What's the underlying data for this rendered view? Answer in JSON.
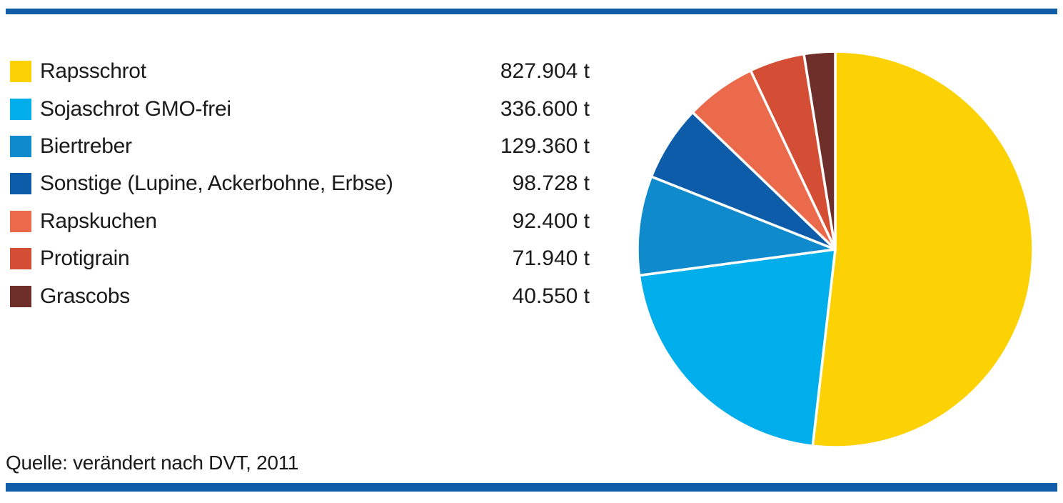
{
  "page": {
    "background": "#ffffff",
    "accent_bar_color": "#0f5ca8"
  },
  "chart_data": {
    "type": "pie",
    "title": "",
    "categories": [
      "Rapsschrot",
      "Sojaschrot GMO-frei",
      "Biertreber",
      "Sonstige (Lupine, Ackerbohne, Erbse)",
      "Rapskuchen",
      "Protigrain",
      "Grascobs"
    ],
    "values": [
      827904,
      336600,
      129360,
      98728,
      92400,
      71940,
      40550
    ],
    "value_labels": [
      "827.904 t",
      "336.600 t",
      "129.360 t",
      "98.728 t",
      "92.400 t",
      "71.940 t",
      "40.550 t"
    ],
    "unit": "t",
    "colors": [
      "#fdd204",
      "#00aeeb",
      "#0e8acd",
      "#0d5ca9",
      "#ec6a4c",
      "#d44e35",
      "#6e2f2a"
    ],
    "legend_position": "left",
    "start_angle": "top",
    "direction": "clockwise",
    "slice_gap_color": "#ffffff",
    "source": "Quelle: verändert nach DVT, 2011"
  }
}
